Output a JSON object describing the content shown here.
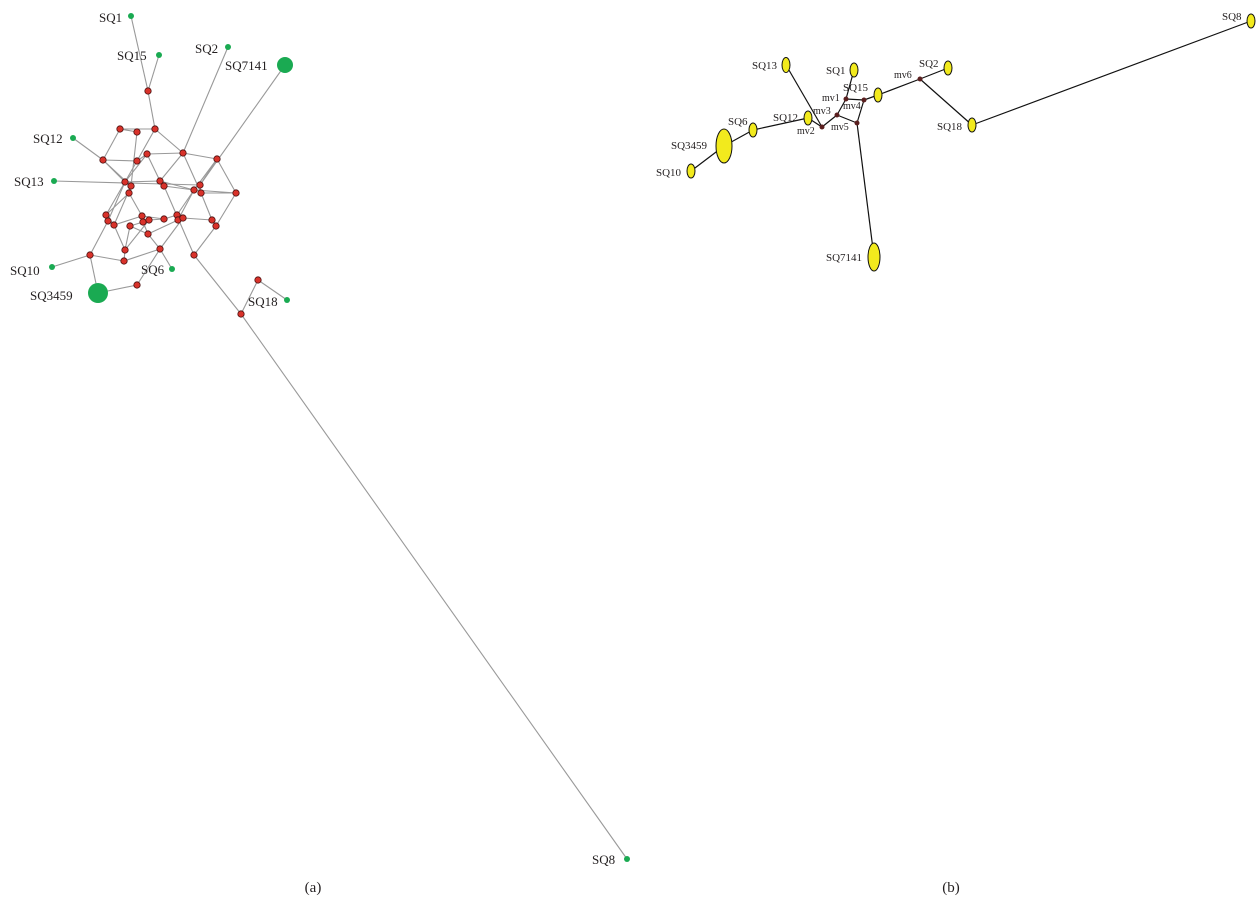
{
  "panel_a": {
    "caption": "(a)",
    "colors": {
      "sample": "#1aaa52",
      "median": "#d9322a",
      "edge": "#999999"
    },
    "samples": [
      "SQ1",
      "SQ15",
      "SQ2",
      "SQ7141",
      "SQ12",
      "SQ13",
      "SQ10",
      "SQ3459",
      "SQ6",
      "SQ18",
      "SQ8"
    ]
  },
  "panel_b": {
    "caption": "(b)",
    "colors": {
      "sample": "#f2ea1d",
      "median": "#5a1f1f",
      "edge": "#111111"
    },
    "samples": [
      "SQ8",
      "SQ13",
      "SQ1",
      "SQ2",
      "mv6",
      "SQ15",
      "mv1",
      "mv3",
      "mv4",
      "SQ12",
      "SQ6",
      "mv2",
      "mv5",
      "SQ3459",
      "SQ18",
      "SQ10",
      "SQ7141"
    ]
  }
}
